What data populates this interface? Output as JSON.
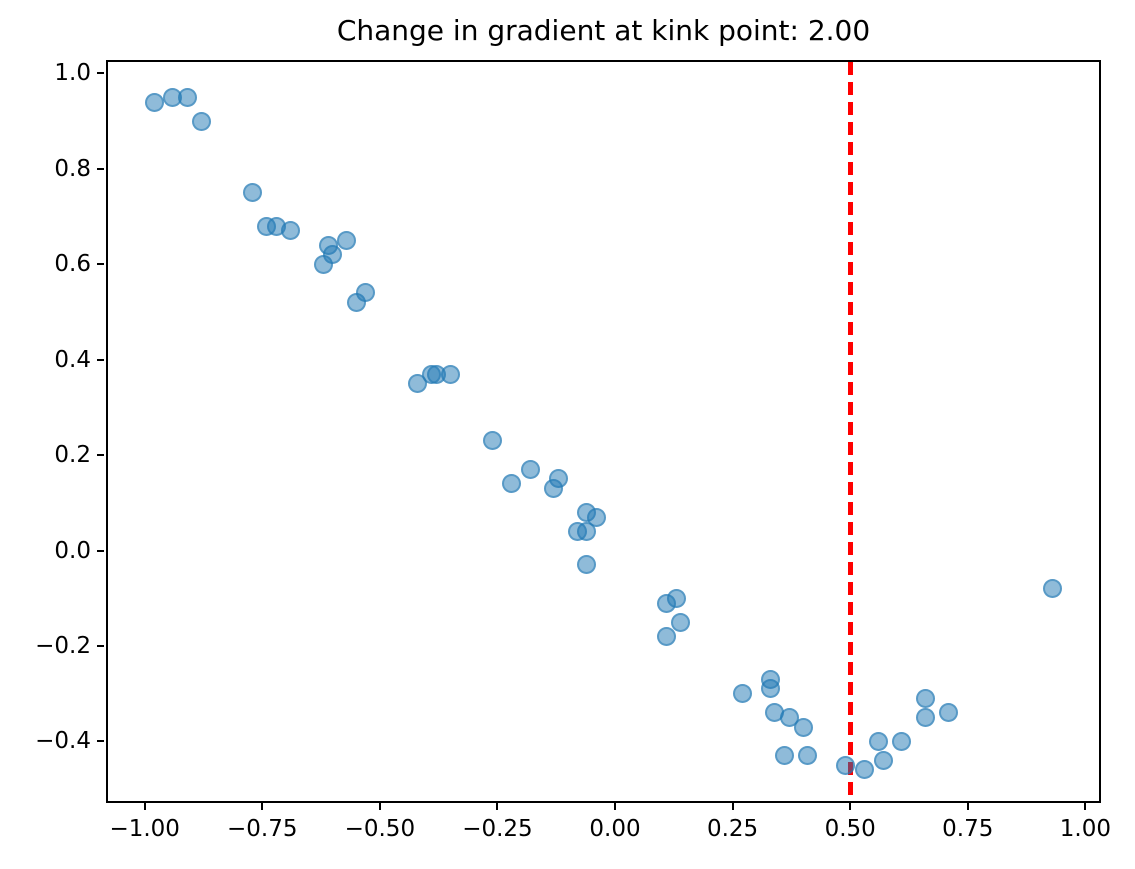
{
  "chart_data": {
    "type": "scatter",
    "title": "Change in gradient at kink point: 2.00",
    "xlabel": "",
    "ylabel": "",
    "grid": false,
    "legend": null,
    "xlim": [
      -1.078,
      1.029
    ],
    "ylim": [
      -0.525,
      1.024
    ],
    "x_ticks": [
      -1.0,
      -0.75,
      -0.5,
      -0.25,
      0.0,
      0.25,
      0.5,
      0.75,
      1.0
    ],
    "x_tick_labels": [
      "−1.00",
      "−0.75",
      "−0.50",
      "−0.25",
      "0.00",
      "0.25",
      "0.50",
      "0.75",
      "1.00"
    ],
    "y_ticks": [
      1.0,
      0.8,
      0.6,
      0.4,
      0.2,
      0.0,
      -0.2,
      -0.4
    ],
    "y_tick_labels": [
      "1.0",
      "0.8",
      "0.6",
      "0.4",
      "0.2",
      "0.0",
      "−0.2",
      "−0.4"
    ],
    "series": [
      {
        "name": "scatter-points",
        "marker": "circle",
        "marker_color": "#1f77b4",
        "marker_alpha": 0.5,
        "points": [
          [
            -0.98,
            0.94
          ],
          [
            -0.94,
            0.95
          ],
          [
            -0.91,
            0.95
          ],
          [
            -0.88,
            0.9
          ],
          [
            -0.77,
            0.75
          ],
          [
            -0.74,
            0.68
          ],
          [
            -0.72,
            0.68
          ],
          [
            -0.69,
            0.67
          ],
          [
            -0.62,
            0.6
          ],
          [
            -0.61,
            0.64
          ],
          [
            -0.6,
            0.62
          ],
          [
            -0.57,
            0.65
          ],
          [
            -0.55,
            0.52
          ],
          [
            -0.53,
            0.54
          ],
          [
            -0.42,
            0.35
          ],
          [
            -0.39,
            0.37
          ],
          [
            -0.38,
            0.37
          ],
          [
            -0.35,
            0.37
          ],
          [
            -0.26,
            0.23
          ],
          [
            -0.22,
            0.14
          ],
          [
            -0.18,
            0.17
          ],
          [
            -0.13,
            0.13
          ],
          [
            -0.12,
            0.15
          ],
          [
            -0.08,
            0.04
          ],
          [
            -0.06,
            0.08
          ],
          [
            -0.06,
            0.04
          ],
          [
            -0.04,
            0.07
          ],
          [
            -0.06,
            -0.03
          ],
          [
            0.11,
            -0.11
          ],
          [
            0.13,
            -0.1
          ],
          [
            0.14,
            -0.15
          ],
          [
            0.11,
            -0.18
          ],
          [
            0.27,
            -0.3
          ],
          [
            0.33,
            -0.27
          ],
          [
            0.33,
            -0.29
          ],
          [
            0.34,
            -0.34
          ],
          [
            0.37,
            -0.35
          ],
          [
            0.4,
            -0.37
          ],
          [
            0.36,
            -0.43
          ],
          [
            0.41,
            -0.43
          ],
          [
            0.49,
            -0.45
          ],
          [
            0.53,
            -0.46
          ],
          [
            0.57,
            -0.44
          ],
          [
            0.56,
            -0.4
          ],
          [
            0.61,
            -0.4
          ],
          [
            0.66,
            -0.31
          ],
          [
            0.66,
            -0.35
          ],
          [
            0.71,
            -0.34
          ],
          [
            0.93,
            -0.08
          ]
        ]
      }
    ],
    "vline": {
      "x": 0.5,
      "color": "#ff0000",
      "style": "dashed"
    }
  }
}
